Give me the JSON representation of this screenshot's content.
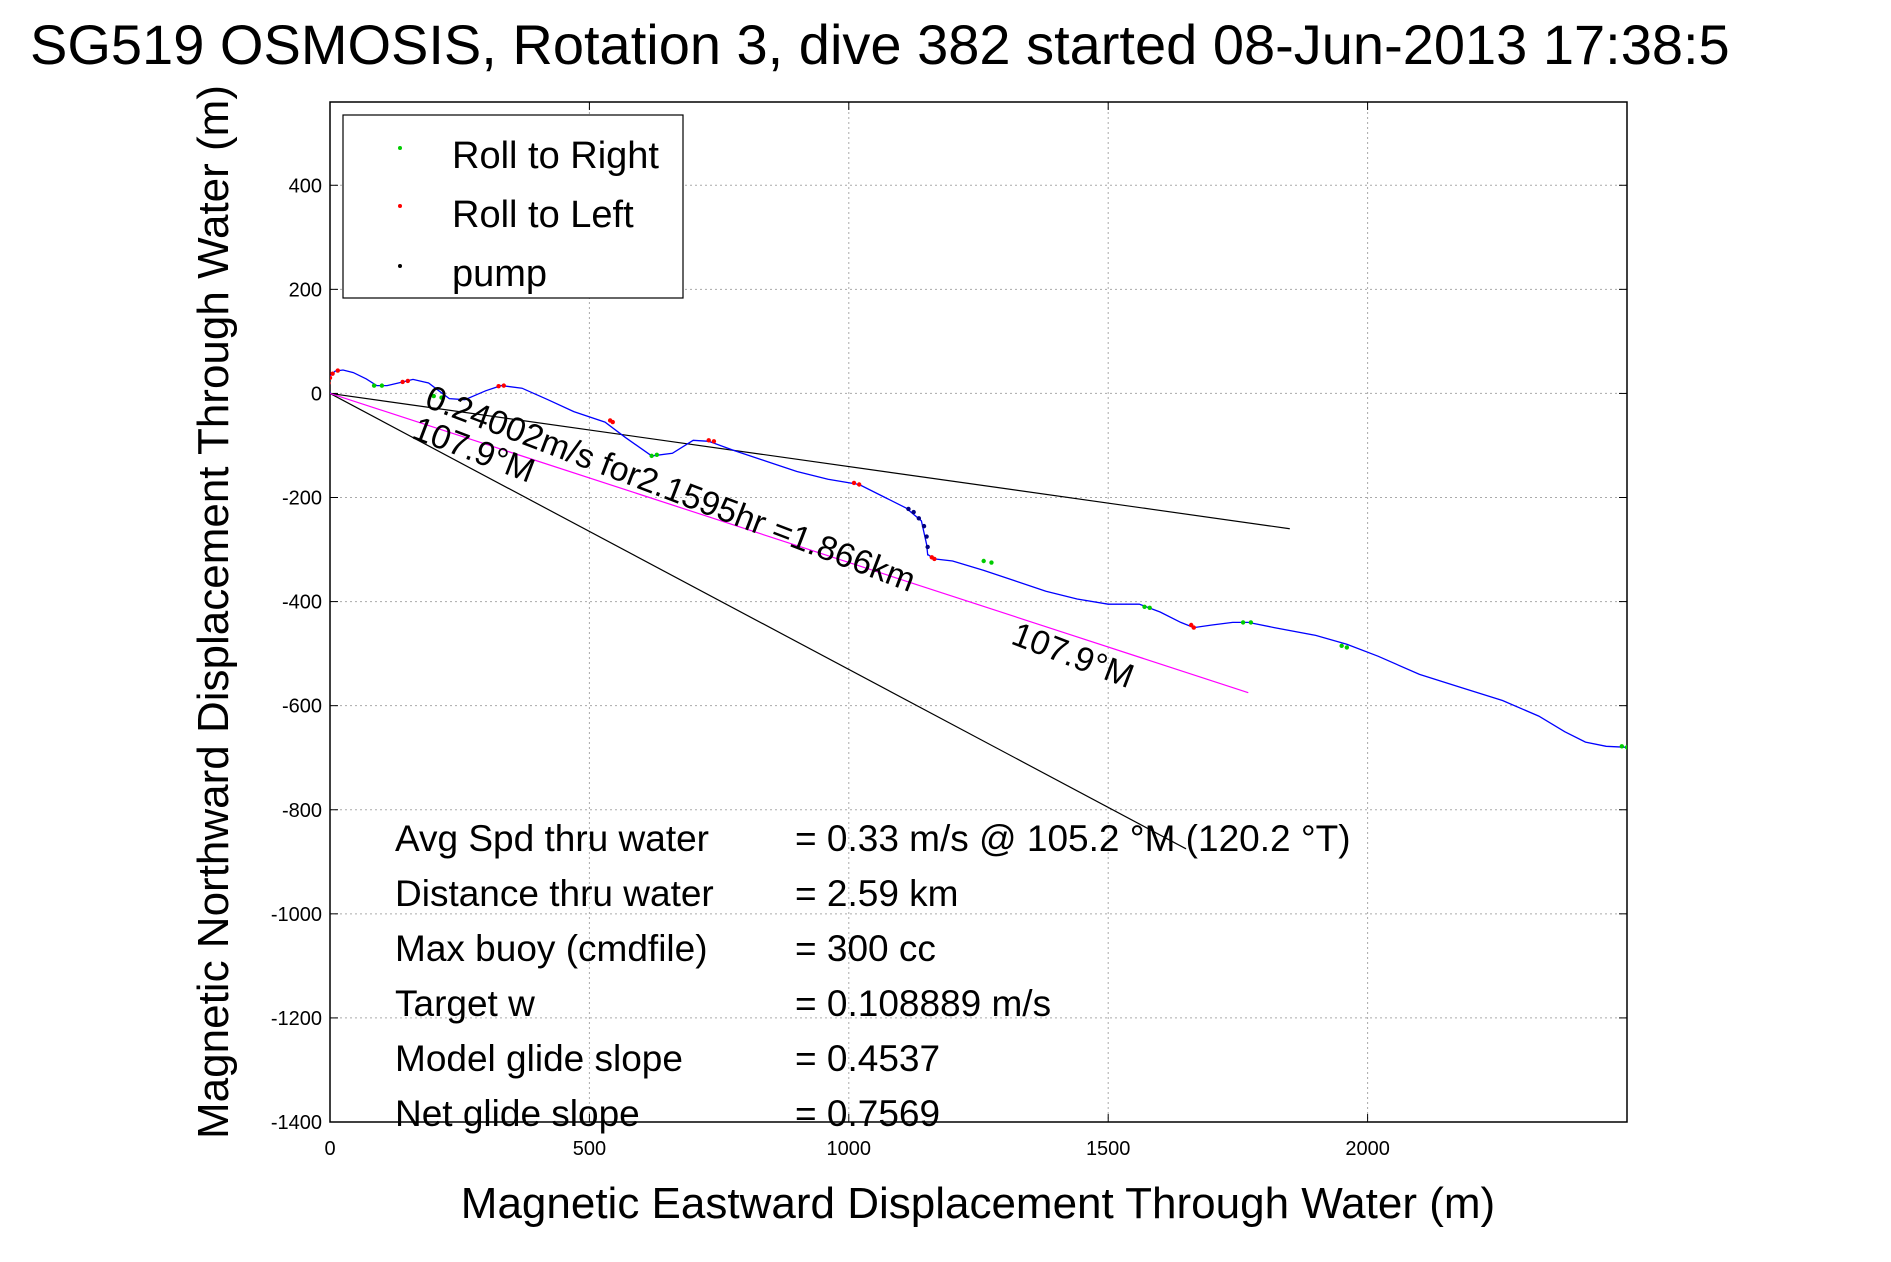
{
  "chart_data": {
    "type": "line",
    "title": "SG519 OSMOSIS, Rotation 3, dive 382 started 08-Jun-2013 17:38:5",
    "xlabel": "Magnetic Eastward Displacement Through Water (m)",
    "ylabel": "Magnetic Northward Displacement Through Water (m)",
    "xlim": [
      0,
      2500
    ],
    "ylim": [
      -1400,
      560
    ],
    "xticks": [
      0,
      500,
      1000,
      1500,
      2000
    ],
    "xtick_labels": [
      "0",
      "500",
      "1000",
      "1500",
      "2000"
    ],
    "yticks": [
      400,
      200,
      0,
      -200,
      -400,
      -600,
      -800,
      -1000,
      -1200,
      -1400
    ],
    "ytick_labels": [
      "400",
      "200",
      "0",
      "-200",
      "-400",
      "-600",
      "-800",
      "-1000",
      "-1200",
      "-1400"
    ],
    "grid": true,
    "legend": {
      "placement": "top-left",
      "entries": [
        {
          "label": "Roll to Right",
          "color": "#00cc00"
        },
        {
          "label": "Roll to Left",
          "color": "#ff0000"
        },
        {
          "label": "pump",
          "color": "#000000"
        }
      ]
    },
    "track": {
      "color": "#0000ff",
      "x": [
        0,
        -5,
        -2,
        10,
        25,
        45,
        70,
        90,
        110,
        140,
        160,
        190,
        210,
        230,
        260,
        300,
        330,
        370,
        420,
        470,
        530,
        570,
        620,
        660,
        700,
        730,
        780,
        840,
        900,
        960,
        1020,
        1070,
        1110,
        1140,
        1150,
        1152,
        1153,
        1165,
        1200,
        1260,
        1320,
        1380,
        1440,
        1500,
        1560,
        1600,
        1640,
        1665,
        1700,
        1740,
        1770,
        1820,
        1900,
        1960,
        2020,
        2100,
        2180,
        2260,
        2330,
        2380,
        2420,
        2460,
        2500
      ],
      "y": [
        0,
        18,
        32,
        43,
        45,
        40,
        28,
        15,
        15,
        22,
        27,
        20,
        5,
        -10,
        -12,
        5,
        15,
        10,
        -12,
        -35,
        -55,
        -85,
        -120,
        -115,
        -90,
        -92,
        -110,
        -130,
        -150,
        -165,
        -175,
        -200,
        -220,
        -245,
        -290,
        -310,
        -310,
        -318,
        -322,
        -340,
        -360,
        -380,
        -395,
        -405,
        -405,
        -420,
        -440,
        -450,
        -445,
        -440,
        -440,
        -450,
        -465,
        -482,
        -505,
        -540,
        -565,
        -590,
        -620,
        -650,
        -670,
        -678,
        -680
      ]
    },
    "markers": {
      "roll_right_color": "#00cc00",
      "roll_left_color": "#ff0000",
      "pump_color": "#000080",
      "roll_right": [
        [
          85,
          15
        ],
        [
          100,
          15
        ],
        [
          200,
          -5
        ],
        [
          215,
          -8
        ],
        [
          620,
          -120
        ],
        [
          630,
          -118
        ],
        [
          1260,
          -322
        ],
        [
          1275,
          -325
        ],
        [
          1570,
          -410
        ],
        [
          1580,
          -412
        ],
        [
          1760,
          -440
        ],
        [
          1775,
          -440
        ],
        [
          1950,
          -485
        ],
        [
          1960,
          -488
        ],
        [
          2490,
          -678
        ],
        [
          2500,
          -680
        ]
      ],
      "roll_left": [
        [
          -3,
          20
        ],
        [
          0,
          30
        ],
        [
          5,
          38
        ],
        [
          15,
          44
        ],
        [
          140,
          22
        ],
        [
          150,
          24
        ],
        [
          325,
          14
        ],
        [
          335,
          15
        ],
        [
          540,
          -52
        ],
        [
          545,
          -55
        ],
        [
          730,
          -90
        ],
        [
          740,
          -92
        ],
        [
          1010,
          -172
        ],
        [
          1020,
          -175
        ],
        [
          1160,
          -315
        ],
        [
          1165,
          -318
        ],
        [
          1660,
          -445
        ],
        [
          1665,
          -450
        ]
      ],
      "pump": [
        [
          1115,
          -222
        ],
        [
          1125,
          -228
        ],
        [
          1135,
          -240
        ],
        [
          1145,
          -255
        ],
        [
          1150,
          -275
        ],
        [
          1152,
          -295
        ]
      ]
    },
    "reference_lines": {
      "black_color": "#000000",
      "magenta_color": "#ff00ff",
      "black_upper": {
        "x": [
          0,
          1850
        ],
        "y": [
          0,
          -260
        ]
      },
      "black_lower": {
        "x": [
          0,
          1650
        ],
        "y": [
          0,
          -875
        ]
      },
      "magenta": {
        "x": [
          0,
          1770
        ],
        "y": [
          0,
          -575
        ]
      }
    },
    "annotations": [
      {
        "text": "0.24002m/s for2.1595hr =1.866km",
        "x": 180,
        "y": -25
      },
      {
        "text": "107.9°M",
        "x": 155,
        "y": -85
      },
      {
        "text": "107.9°M",
        "x": 1310,
        "y": -480
      }
    ],
    "stats": [
      {
        "label": "Avg Spd thru water",
        "value": "=  0.33 m/s @ 105.2 °M (120.2 °T)"
      },
      {
        "label": "Distance thru water",
        "value": "=  2.59 km"
      },
      {
        "label": "Max buoy (cmdfile)",
        "value": "= 300 cc"
      },
      {
        "label": "Target w",
        "value": "= 0.108889 m/s"
      },
      {
        "label": "Model glide slope",
        "value": "= 0.4537"
      },
      {
        "label": "Net glide slope",
        "value": "= 0.7569"
      }
    ]
  }
}
